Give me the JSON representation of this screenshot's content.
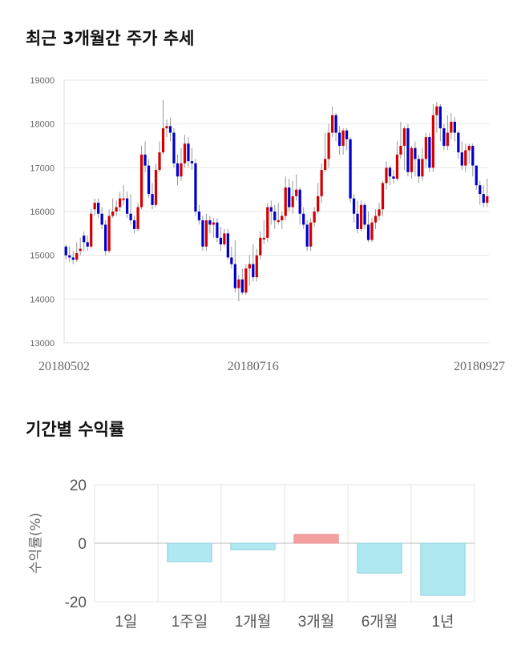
{
  "titles": {
    "price_trend": "최근 3개월간 주가 추세",
    "period_returns": "기간별 수익률"
  },
  "colors": {
    "up": "#d40000",
    "down": "#0000cc",
    "positive_bar": "#f4a0a0",
    "negative_bar": "#b0e8f2",
    "grid": "#e6e6e6",
    "wick": "#999999"
  },
  "chart_data": [
    {
      "type": "candlestick",
      "title": "최근 3개월간 주가 추세",
      "ylim": [
        13000,
        19000
      ],
      "yticks": [
        "13000",
        "14000",
        "15000",
        "16000",
        "17000",
        "18000",
        "19000"
      ],
      "xtick_labels": [
        "20180502",
        "20180716",
        "20180927"
      ],
      "xtick_indices": [
        0,
        52,
        104
      ],
      "grid": true,
      "candles": [
        [
          15200,
          15000,
          15250,
          14900
        ],
        [
          15000,
          14950,
          15200,
          14850
        ],
        [
          14950,
          14900,
          15100,
          14800
        ],
        [
          14900,
          15050,
          15300,
          14850
        ],
        [
          15100,
          15150,
          15400,
          15000
        ],
        [
          15450,
          15300,
          15550,
          15100
        ],
        [
          15300,
          15200,
          15450,
          15100
        ],
        [
          15200,
          15950,
          16050,
          15150
        ],
        [
          16050,
          16200,
          16300,
          15900
        ],
        [
          16200,
          15950,
          16300,
          15850
        ],
        [
          15950,
          15700,
          16100,
          15600
        ],
        [
          15700,
          15100,
          15800,
          15000
        ],
        [
          15100,
          15900,
          16050,
          15050
        ],
        [
          15900,
          16000,
          16300,
          15850
        ],
        [
          16000,
          16100,
          16250,
          15900
        ],
        [
          16100,
          16300,
          16450,
          16000
        ],
        [
          16300,
          16300,
          16600,
          16150
        ],
        [
          16300,
          15950,
          16450,
          15850
        ],
        [
          15950,
          15800,
          16400,
          15700
        ],
        [
          15800,
          15600,
          15900,
          15500
        ],
        [
          15600,
          16100,
          16200,
          15550
        ],
        [
          16100,
          17300,
          17500,
          16050
        ],
        [
          17300,
          17050,
          17600,
          16900
        ],
        [
          17050,
          16400,
          17200,
          16300
        ],
        [
          16400,
          16150,
          16650,
          16050
        ],
        [
          16150,
          16950,
          17100,
          16100
        ],
        [
          16950,
          17350,
          17600,
          16900
        ],
        [
          17350,
          17900,
          18550,
          17300
        ],
        [
          17900,
          17950,
          18100,
          17700
        ],
        [
          17950,
          17800,
          18150,
          17600
        ],
        [
          17800,
          17100,
          17900,
          17000
        ],
        [
          17100,
          16800,
          17300,
          16600
        ],
        [
          16800,
          17100,
          17450,
          16700
        ],
        [
          17100,
          17550,
          17750,
          17000
        ],
        [
          17550,
          17150,
          17700,
          17000
        ],
        [
          17150,
          17100,
          17450,
          16950
        ],
        [
          17100,
          16000,
          17200,
          15900
        ],
        [
          16000,
          15800,
          16150,
          15700
        ],
        [
          15800,
          15200,
          15900,
          15100
        ],
        [
          15200,
          15800,
          15950,
          15100
        ],
        [
          15800,
          15700,
          15900,
          15500
        ],
        [
          15700,
          15750,
          15850,
          15400
        ],
        [
          15750,
          15400,
          15850,
          15300
        ],
        [
          15400,
          15250,
          15650,
          15100
        ],
        [
          15250,
          15500,
          15600,
          15200
        ],
        [
          15500,
          14950,
          15600,
          14900
        ],
        [
          14950,
          14800,
          15200,
          14700
        ],
        [
          14800,
          14250,
          15350,
          14150
        ],
        [
          14250,
          14450,
          14550,
          13950
        ],
        [
          14450,
          14150,
          14700,
          14100
        ],
        [
          14150,
          14700,
          14800,
          14100
        ],
        [
          14700,
          14800,
          15000,
          14300
        ],
        [
          14800,
          14500,
          15250,
          14400
        ],
        [
          14500,
          15000,
          15150,
          14400
        ],
        [
          15000,
          15400,
          15550,
          14900
        ],
        [
          15400,
          15400,
          15800,
          15250
        ],
        [
          15400,
          16100,
          16200,
          15300
        ],
        [
          16100,
          16000,
          16250,
          15700
        ],
        [
          16000,
          15800,
          16150,
          15600
        ],
        [
          15800,
          15800,
          16200,
          15700
        ],
        [
          15800,
          15900,
          16000,
          15600
        ],
        [
          15900,
          16550,
          16800,
          15800
        ],
        [
          16550,
          16100,
          16750,
          16000
        ],
        [
          16100,
          16350,
          16700,
          15950
        ],
        [
          16350,
          16500,
          16850,
          16250
        ],
        [
          16500,
          15950,
          16550,
          15700
        ],
        [
          15950,
          15700,
          16100,
          15600
        ],
        [
          15700,
          15200,
          15800,
          15100
        ],
        [
          15200,
          15750,
          15850,
          15100
        ],
        [
          15750,
          16000,
          16100,
          15650
        ],
        [
          16000,
          16350,
          16650,
          15950
        ],
        [
          16350,
          16950,
          17100,
          16200
        ],
        [
          16950,
          17200,
          17800,
          16900
        ],
        [
          17200,
          17800,
          18000,
          17000
        ],
        [
          17800,
          18200,
          18400,
          17700
        ],
        [
          18200,
          17800,
          18250,
          17600
        ],
        [
          17800,
          17500,
          17950,
          17300
        ],
        [
          17500,
          17850,
          17900,
          17300
        ],
        [
          17850,
          17650,
          17900,
          17400
        ],
        [
          17650,
          16300,
          17700,
          16200
        ],
        [
          16300,
          15950,
          16400,
          15750
        ],
        [
          15950,
          15600,
          16250,
          15500
        ],
        [
          15600,
          16150,
          16250,
          15550
        ],
        [
          16150,
          15700,
          16200,
          15600
        ],
        [
          15700,
          15350,
          16000,
          15300
        ],
        [
          15350,
          15750,
          15850,
          15300
        ],
        [
          15750,
          15900,
          16050,
          15600
        ],
        [
          15900,
          16050,
          16200,
          15800
        ],
        [
          16050,
          16650,
          16700,
          15900
        ],
        [
          16650,
          17000,
          17150,
          16500
        ],
        [
          17000,
          16800,
          17050,
          16600
        ],
        [
          16800,
          16750,
          16950,
          16650
        ],
        [
          16750,
          17300,
          17600,
          16700
        ],
        [
          17300,
          17500,
          18050,
          17200
        ],
        [
          17500,
          17900,
          17950,
          16950
        ],
        [
          17900,
          16900,
          18000,
          16800
        ],
        [
          16900,
          17450,
          17500,
          16750
        ],
        [
          17450,
          17200,
          17600,
          16800
        ],
        [
          17200,
          16800,
          17300,
          16650
        ],
        [
          16800,
          17200,
          17450,
          16700
        ],
        [
          17200,
          17700,
          17800,
          17000
        ],
        [
          17700,
          17000,
          17800,
          16900
        ],
        [
          17000,
          18200,
          18450,
          16900
        ],
        [
          18200,
          18400,
          18500,
          17800
        ],
        [
          18400,
          17900,
          18450,
          17600
        ],
        [
          17900,
          17500,
          18000,
          17400
        ],
        [
          17500,
          17800,
          18200,
          17400
        ],
        [
          17800,
          18050,
          18250,
          17650
        ],
        [
          18050,
          17800,
          18150,
          17600
        ],
        [
          17800,
          17350,
          17850,
          17200
        ],
        [
          17350,
          17050,
          17600,
          16950
        ],
        [
          17050,
          17400,
          17550,
          16900
        ],
        [
          17400,
          17500,
          17550,
          17100
        ],
        [
          17500,
          17050,
          17550,
          16800
        ],
        [
          17050,
          16600,
          17050,
          16500
        ],
        [
          16600,
          16400,
          16700,
          16150
        ],
        [
          16400,
          16200,
          16600,
          16100
        ],
        [
          16200,
          16350,
          16750,
          16100
        ]
      ]
    },
    {
      "type": "bar",
      "title": "기간별 수익률",
      "ylabel": "수익률(%)",
      "ylim": [
        -20,
        20
      ],
      "yticks": [
        "20",
        "0",
        "-20"
      ],
      "categories": [
        "1일",
        "1주일",
        "1개월",
        "3개월",
        "6개월",
        "1년"
      ],
      "values": [
        0,
        -6.3,
        -2.2,
        3.0,
        -10.2,
        -17.8
      ],
      "grid": true
    }
  ]
}
